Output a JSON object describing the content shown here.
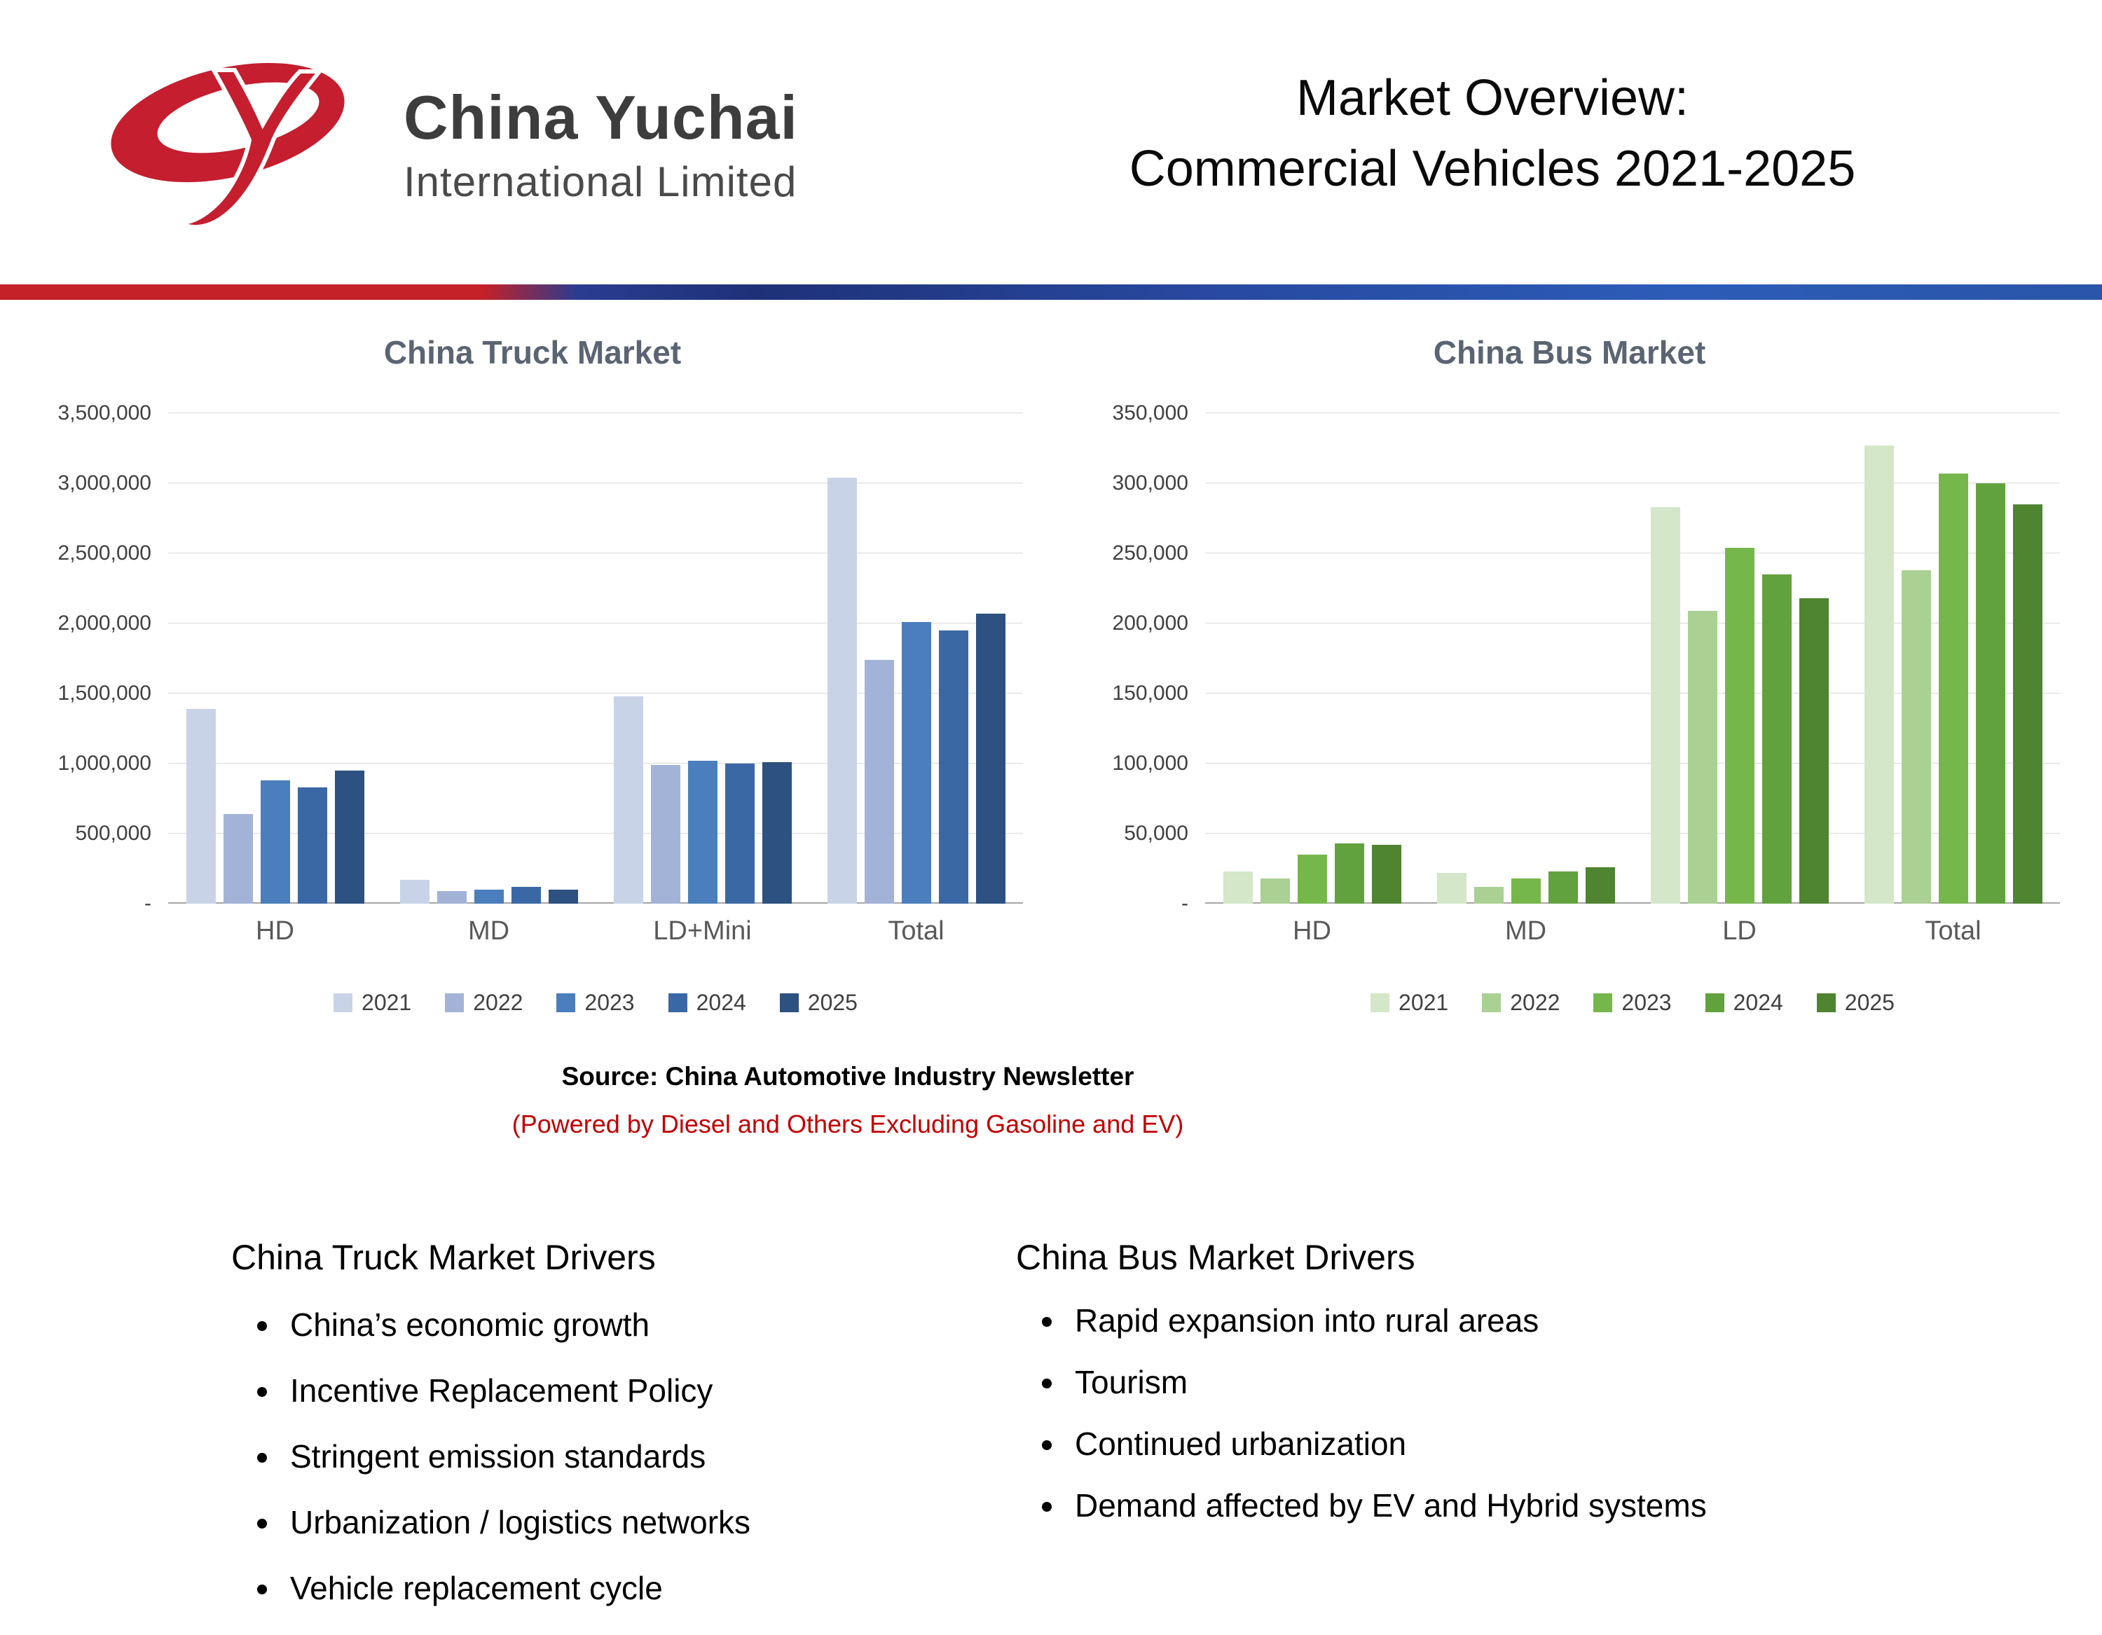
{
  "header": {
    "logo_brand": "China Yuchai",
    "logo_sub": "International Limited",
    "title_line1": "Market Overview:",
    "title_line2": "Commercial Vehicles 2021-2025"
  },
  "source": {
    "line1": "Source: China Automotive Industry Newsletter",
    "line2": "(Powered by Diesel and Others Excluding Gasoline and EV)"
  },
  "chart_data": [
    {
      "type": "bar",
      "title": "China Truck Market",
      "categories": [
        "HD",
        "MD",
        "LD+Mini",
        "Total"
      ],
      "series": [
        {
          "name": "2021",
          "color": "#c9d3e8",
          "values": [
            1390000,
            170000,
            1480000,
            3040000
          ]
        },
        {
          "name": "2022",
          "color": "#a3b3d8",
          "values": [
            640000,
            90000,
            990000,
            1740000
          ]
        },
        {
          "name": "2023",
          "color": "#4a7ebc",
          "values": [
            880000,
            100000,
            1020000,
            2010000
          ]
        },
        {
          "name": "2024",
          "color": "#3a68a4",
          "values": [
            830000,
            120000,
            1000000,
            1950000
          ]
        },
        {
          "name": "2025",
          "color": "#2d5180",
          "values": [
            950000,
            100000,
            1010000,
            2070000
          ]
        }
      ],
      "ylim": [
        0,
        3500000
      ],
      "ytick": 500000,
      "grid": true,
      "legend_position": "bottom",
      "xlabel": "",
      "ylabel": ""
    },
    {
      "type": "bar",
      "title": "China Bus Market",
      "categories": [
        "HD",
        "MD",
        "LD",
        "Total"
      ],
      "series": [
        {
          "name": "2021",
          "color": "#d4e7c9",
          "values": [
            23000,
            22000,
            283000,
            327000
          ]
        },
        {
          "name": "2022",
          "color": "#abd093",
          "values": [
            18000,
            12000,
            209000,
            238000
          ]
        },
        {
          "name": "2023",
          "color": "#76b74c",
          "values": [
            35000,
            18000,
            254000,
            307000
          ]
        },
        {
          "name": "2024",
          "color": "#62a23e",
          "values": [
            43000,
            23000,
            235000,
            300000
          ]
        },
        {
          "name": "2025",
          "color": "#4f8431",
          "values": [
            42000,
            26000,
            218000,
            285000
          ]
        }
      ],
      "ylim": [
        0,
        350000
      ],
      "ytick": 50000,
      "grid": true,
      "legend_position": "bottom",
      "xlabel": "",
      "ylabel": ""
    }
  ],
  "drivers": [
    {
      "heading": "China Truck Market Drivers",
      "items": [
        "China’s economic growth",
        "Incentive Replacement Policy",
        "Stringent emission standards",
        "Urbanization / logistics networks",
        "Vehicle replacement cycle"
      ]
    },
    {
      "heading": "China Bus Market Drivers",
      "items": [
        "Rapid expansion into rural areas",
        "Tourism",
        "Continued urbanization",
        "Demand affected by EV and Hybrid systems"
      ]
    }
  ]
}
